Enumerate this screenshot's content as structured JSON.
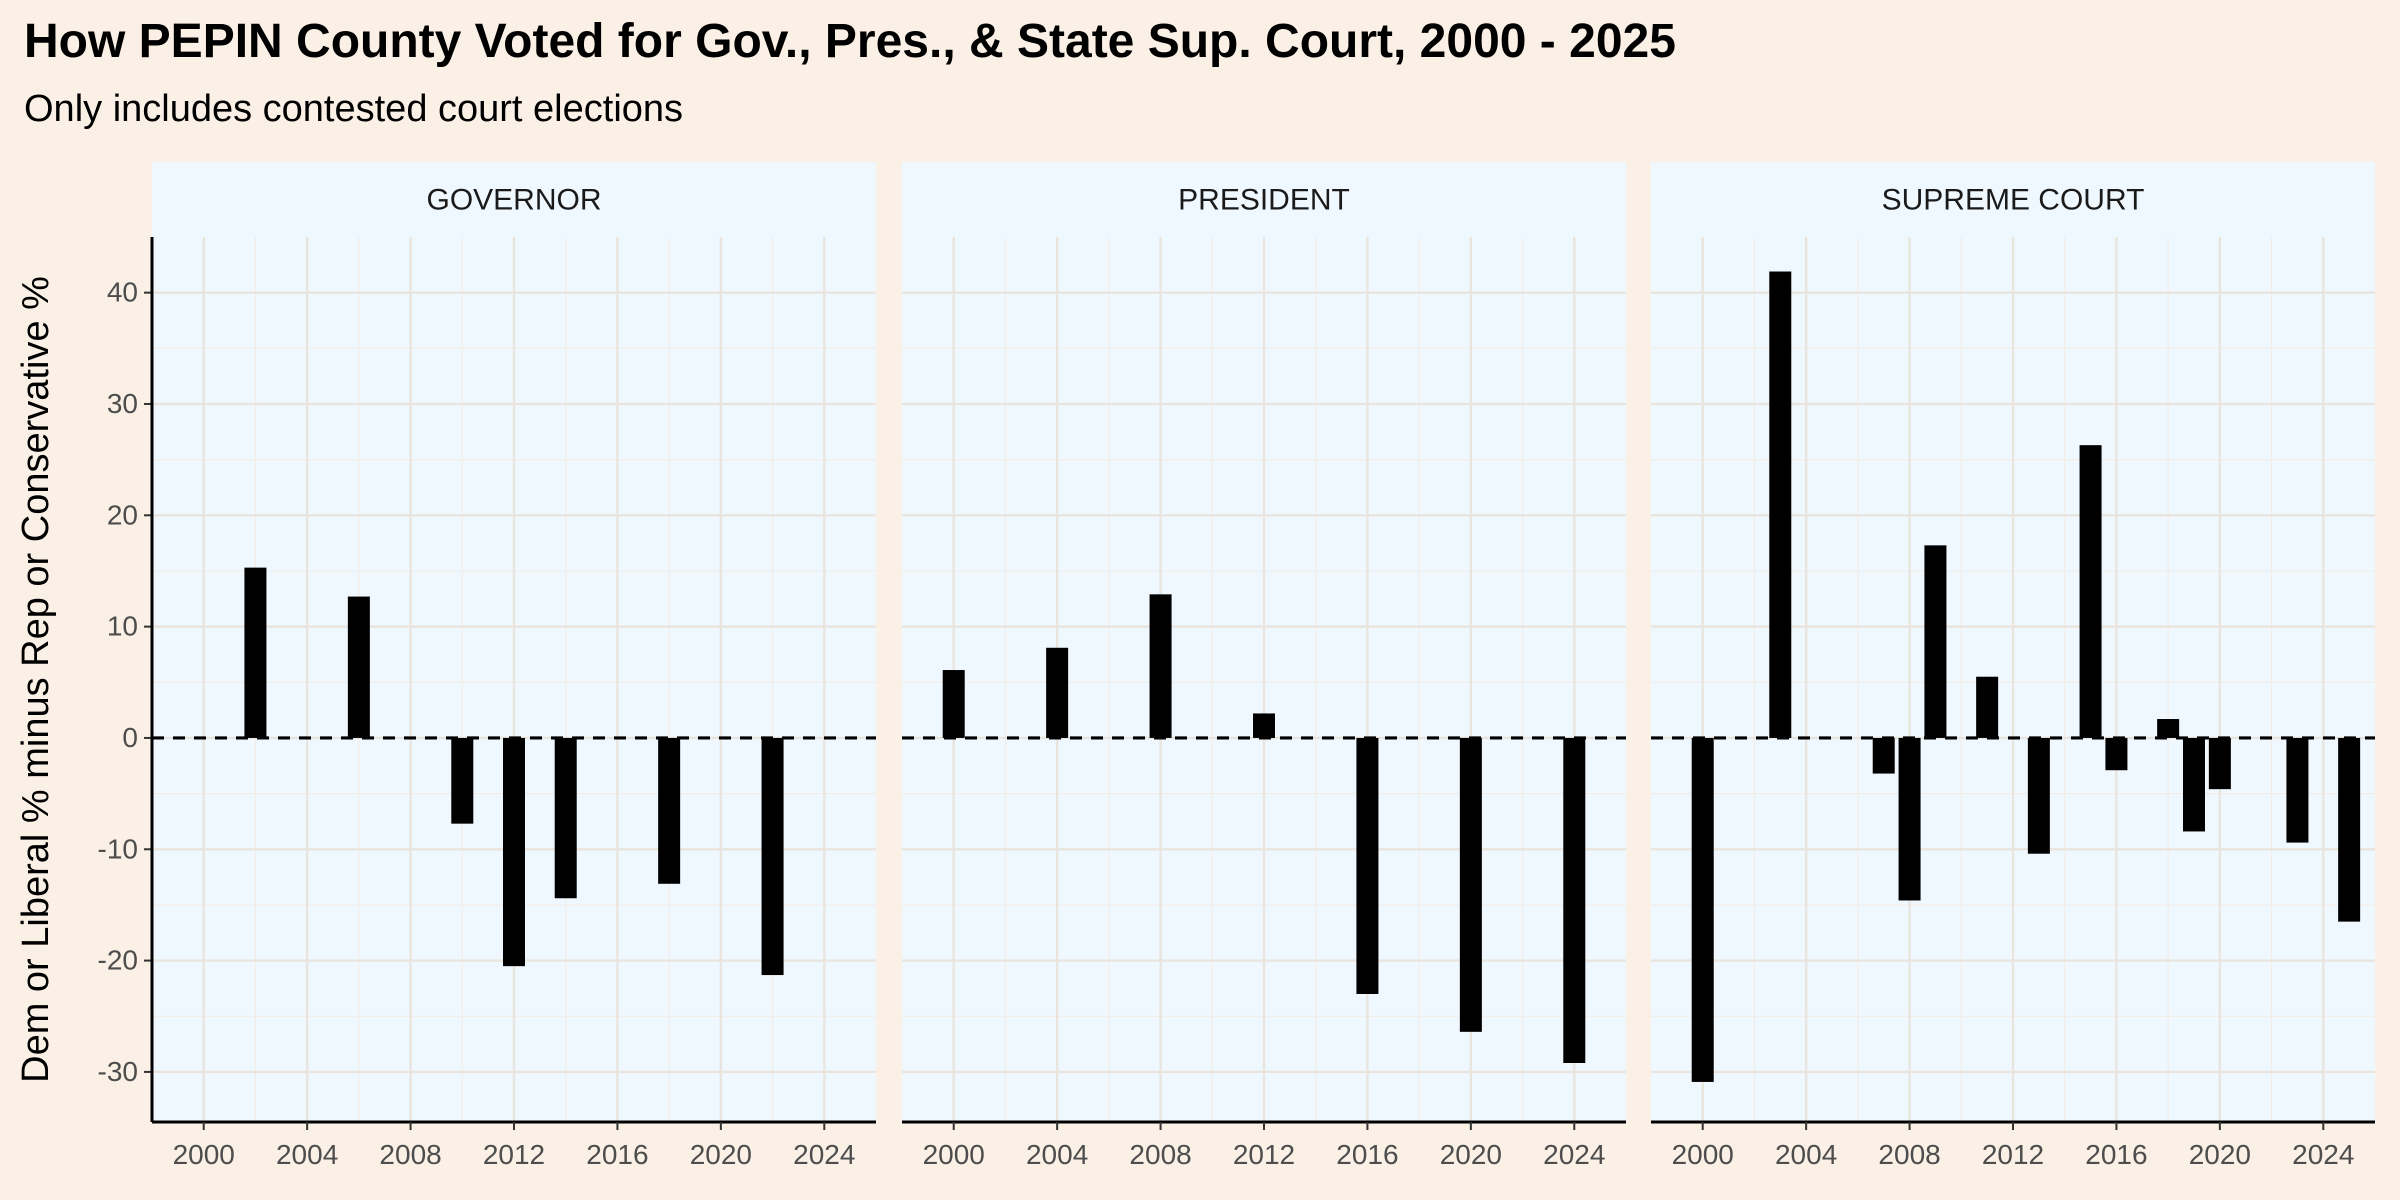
{
  "chart_data": {
    "type": "bar",
    "title": "How PEPIN County Voted for Gov., Pres., & State Sup. Court, 2000 - 2025",
    "subtitle": "Only includes contested court elections",
    "ylabel": "Dem or Liberal % minus Rep or Conservative %",
    "xlabel": "",
    "xlim": [
      1998,
      2026
    ],
    "ylim": [
      -34.5,
      45
    ],
    "x_ticks": [
      2000,
      2004,
      2008,
      2012,
      2016,
      2020,
      2024
    ],
    "y_ticks": [
      -30,
      -20,
      -10,
      0,
      10,
      20,
      30,
      40
    ],
    "reference_line": {
      "y": 0,
      "style": "dashed"
    },
    "grid": true,
    "facets": [
      {
        "label": "GOVERNOR",
        "bars": [
          {
            "x": 2002,
            "y": 15.3
          },
          {
            "x": 2006,
            "y": 12.7
          },
          {
            "x": 2010,
            "y": -7.7
          },
          {
            "x": 2012,
            "y": -20.5
          },
          {
            "x": 2014,
            "y": -14.4
          },
          {
            "x": 2018,
            "y": -13.1
          },
          {
            "x": 2022,
            "y": -21.3
          }
        ]
      },
      {
        "label": "PRESIDENT",
        "bars": [
          {
            "x": 2000,
            "y": 6.1
          },
          {
            "x": 2004,
            "y": 8.1
          },
          {
            "x": 2008,
            "y": 12.9
          },
          {
            "x": 2012,
            "y": 2.2
          },
          {
            "x": 2016,
            "y": -23.0
          },
          {
            "x": 2020,
            "y": -26.4
          },
          {
            "x": 2024,
            "y": -29.2
          }
        ]
      },
      {
        "label": "SUPREME COURT",
        "bars": [
          {
            "x": 2000,
            "y": -30.9
          },
          {
            "x": 2003,
            "y": 41.9
          },
          {
            "x": 2007,
            "y": -3.2
          },
          {
            "x": 2008,
            "y": -14.6
          },
          {
            "x": 2009,
            "y": 17.3
          },
          {
            "x": 2011,
            "y": 5.5
          },
          {
            "x": 2013,
            "y": -10.4
          },
          {
            "x": 2015,
            "y": 26.3
          },
          {
            "x": 2016,
            "y": -2.9
          },
          {
            "x": 2018,
            "y": 1.7
          },
          {
            "x": 2019,
            "y": -8.4
          },
          {
            "x": 2020,
            "y": -4.6
          },
          {
            "x": 2023,
            "y": -9.4
          },
          {
            "x": 2025,
            "y": -16.5
          }
        ]
      }
    ]
  }
}
